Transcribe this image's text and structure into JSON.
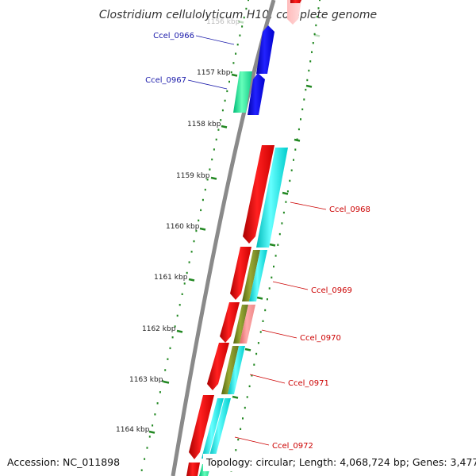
{
  "title": "Clostridium cellulolyticum H10, complete genome",
  "accession": "Accession: NC_011898",
  "topology": "Topology: circular; Length: 4,068,724 bp; Genes: 3,477",
  "ticks": [
    {
      "label": "1156 kbp",
      "faded": true
    },
    {
      "label": "1157 kbp"
    },
    {
      "label": "1158 kbp"
    },
    {
      "label": "1159 kbp"
    },
    {
      "label": "1160 kbp"
    },
    {
      "label": "1161 kbp"
    },
    {
      "label": "1162 kbp"
    },
    {
      "label": "1163 kbp"
    },
    {
      "label": "1164 kbp"
    }
  ],
  "gene_labels": [
    {
      "name": "Ccel_0966",
      "color": "#1a1aaa"
    },
    {
      "name": "Ccel_0967",
      "color": "#1a1aaa"
    },
    {
      "name": "Ccel_0968",
      "color": "#cc0000"
    },
    {
      "name": "Ccel_0969",
      "color": "#cc0000"
    },
    {
      "name": "Ccel_0970",
      "color": "#cc0000"
    },
    {
      "name": "Ccel_0971",
      "color": "#cc0000"
    },
    {
      "name": "Ccel_0972",
      "color": "#cc0000"
    }
  ],
  "colors": {
    "backbone": "#8a8a8a",
    "tick_green": "#228822",
    "forward_blue": "#0000dd",
    "cds_red": "#ee0000",
    "cyan": "#00e5e5",
    "spring_green": "#22ee99",
    "olive": "#7a8a22",
    "salmon": "#ee8080"
  }
}
